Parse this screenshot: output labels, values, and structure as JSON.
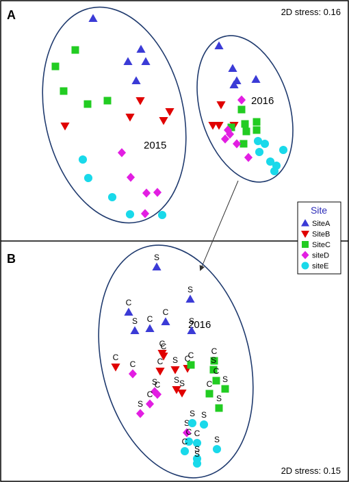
{
  "chart_data": [
    {
      "panel_label": "A",
      "type": "scatter",
      "stress_label": "2D stress: 0.16",
      "groups": [
        {
          "label": "2015"
        },
        {
          "label": "2016"
        }
      ],
      "series": [
        {
          "name": "SiteA",
          "marker": "triangle-up",
          "color": "#3b3bd6",
          "points": [
            [
              136,
              27
            ],
            [
              206,
              72
            ],
            [
              187,
              90
            ],
            [
              213,
              90
            ],
            [
              199,
              118
            ],
            [
              320,
              67
            ],
            [
              340,
              100
            ],
            [
              374,
              116
            ],
            [
              346,
              118
            ],
            [
              342,
              124
            ]
          ]
        },
        {
          "name": "SiteB",
          "marker": "triangle-down",
          "color": "#e00000",
          "points": [
            [
              205,
              147
            ],
            [
              248,
              163
            ],
            [
              190,
              171
            ],
            [
              239,
              176
            ],
            [
              95,
              184
            ],
            [
              323,
              153
            ],
            [
              311,
              183
            ],
            [
              320,
              183
            ],
            [
              342,
              183
            ]
          ]
        },
        {
          "name": "SiteC",
          "marker": "square",
          "color": "#22cc22",
          "points": [
            [
              110,
              73
            ],
            [
              81,
              97
            ],
            [
              93,
              133
            ],
            [
              157,
              147
            ],
            [
              128,
              152
            ],
            [
              353,
              160
            ],
            [
              358,
              181
            ],
            [
              375,
              178
            ],
            [
              338,
              186
            ],
            [
              375,
              190
            ],
            [
              360,
              192
            ],
            [
              356,
              210
            ]
          ]
        },
        {
          "name": "siteD",
          "marker": "diamond",
          "color": "#e21ee2",
          "points": [
            [
              178,
              223
            ],
            [
              191,
              259
            ],
            [
              230,
              281
            ],
            [
              214,
              282
            ],
            [
              212,
              312
            ],
            [
              353,
              146
            ],
            [
              333,
              190
            ],
            [
              336,
              196
            ],
            [
              329,
              203
            ],
            [
              346,
              210
            ],
            [
              363,
              230
            ]
          ]
        },
        {
          "name": "siteE",
          "marker": "circle",
          "color": "#19d9ea",
          "points": [
            [
              121,
              233
            ],
            [
              129,
              260
            ],
            [
              164,
              288
            ],
            [
              190,
              313
            ],
            [
              237,
              314
            ],
            [
              377,
              206
            ],
            [
              387,
              210
            ],
            [
              414,
              219
            ],
            [
              379,
              222
            ],
            [
              395,
              236
            ],
            [
              404,
              242
            ],
            [
              401,
              250
            ]
          ]
        }
      ]
    },
    {
      "panel_label": "B",
      "type": "scatter",
      "stress_label": "2D stress: 0.15",
      "groups": [
        {
          "label": "2016"
        }
      ],
      "series": [
        {
          "name": "SiteA",
          "marker": "triangle-up",
          "color": "#3b3bd6",
          "points": [
            [
              229,
              390,
              "S"
            ],
            [
              278,
              437,
              "S"
            ],
            [
              188,
              456,
              "C"
            ],
            [
              242,
              470,
              "C"
            ],
            [
              219,
              480,
              "C"
            ],
            [
              197,
              483,
              "S"
            ],
            [
              280,
              483,
              "S"
            ]
          ]
        },
        {
          "name": "SiteB",
          "marker": "triangle-down",
          "color": "#e00000",
          "points": [
            [
              237,
              516,
              "C"
            ],
            [
              239,
              520,
              "C"
            ],
            [
              169,
              536,
              "C"
            ],
            [
              256,
              540,
              "S"
            ],
            [
              274,
              538,
              "C"
            ],
            [
              234,
              542,
              "C"
            ],
            [
              258,
              569,
              "S"
            ],
            [
              266,
              574,
              "S"
            ]
          ]
        },
        {
          "name": "SiteC",
          "marker": "square",
          "color": "#22cc22",
          "points": [
            [
              279,
              533,
              "C"
            ],
            [
              313,
              527,
              "C"
            ],
            [
              312,
              540,
              "S"
            ],
            [
              316,
              556,
              "C"
            ],
            [
              329,
              568,
              "S"
            ],
            [
              306,
              575,
              "C"
            ],
            [
              320,
              596,
              "S"
            ]
          ]
        },
        {
          "name": "siteD",
          "marker": "diamond",
          "color": "#e21ee2",
          "points": [
            [
              194,
              546,
              "C"
            ],
            [
              226,
              572,
              "S"
            ],
            [
              230,
              576,
              "C"
            ],
            [
              219,
              590,
              "C"
            ],
            [
              205,
              604,
              "S"
            ],
            [
              273,
              632,
              "S"
            ]
          ]
        },
        {
          "name": "siteE",
          "marker": "circle",
          "color": "#19d9ea",
          "points": [
            [
              281,
              618,
              "S"
            ],
            [
              298,
              620,
              "S"
            ],
            [
              276,
              645,
              "C"
            ],
            [
              288,
              647,
              "C"
            ],
            [
              270,
              659,
              "C"
            ],
            [
              317,
              656,
              "S"
            ],
            [
              288,
              670,
              "S"
            ],
            [
              288,
              677,
              "S"
            ]
          ]
        }
      ]
    }
  ],
  "legend": {
    "title": "Site",
    "items": [
      {
        "label": "SiteA",
        "marker": "triangle-up",
        "color": "#3b3bd6"
      },
      {
        "label": "SiteB",
        "marker": "triangle-down",
        "color": "#e00000"
      },
      {
        "label": "SiteC",
        "marker": "square",
        "color": "#22cc22"
      },
      {
        "label": "siteD",
        "marker": "diamond",
        "color": "#e21ee2"
      },
      {
        "label": "siteE",
        "marker": "circle",
        "color": "#19d9ea"
      }
    ]
  }
}
